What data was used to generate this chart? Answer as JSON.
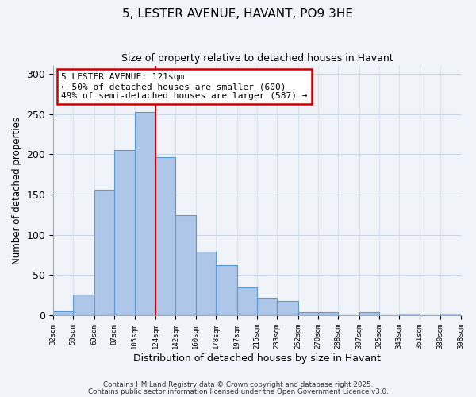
{
  "title": "5, LESTER AVENUE, HAVANT, PO9 3HE",
  "subtitle": "Size of property relative to detached houses in Havant",
  "xlabel": "Distribution of detached houses by size in Havant",
  "ylabel": "Number of detached properties",
  "bar_edges": [
    32,
    50,
    69,
    87,
    105,
    124,
    142,
    160,
    178,
    197,
    215,
    233,
    252,
    270,
    288,
    307,
    325,
    343,
    361,
    380,
    398
  ],
  "bar_heights": [
    5,
    26,
    156,
    205,
    253,
    196,
    124,
    79,
    62,
    35,
    22,
    18,
    4,
    4,
    0,
    4,
    0,
    2,
    0,
    2
  ],
  "bar_color": "#aec6e8",
  "bar_edgecolor": "#5b9bd5",
  "vline_x": 124,
  "vline_color": "#cc0000",
  "annotation_title": "5 LESTER AVENUE: 121sqm",
  "annotation_line1": "← 50% of detached houses are smaller (600)",
  "annotation_line2": "49% of semi-detached houses are larger (587) →",
  "annotation_box_edgecolor": "#cc0000",
  "annotation_box_facecolor": "#ffffff",
  "ylim": [
    0,
    310
  ],
  "yticks": [
    0,
    50,
    100,
    150,
    200,
    250,
    300
  ],
  "tick_labels": [
    "32sqm",
    "50sqm",
    "69sqm",
    "87sqm",
    "105sqm",
    "124sqm",
    "142sqm",
    "160sqm",
    "178sqm",
    "197sqm",
    "215sqm",
    "233sqm",
    "252sqm",
    "270sqm",
    "288sqm",
    "307sqm",
    "325sqm",
    "343sqm",
    "361sqm",
    "380sqm",
    "398sqm"
  ],
  "footer1": "Contains HM Land Registry data © Crown copyright and database right 2025.",
  "footer2": "Contains public sector information licensed under the Open Government Licence v3.0.",
  "bg_color": "#f0f4f8",
  "grid_color": "#c8d8e8",
  "title_fontsize": 11,
  "subtitle_fontsize": 9
}
